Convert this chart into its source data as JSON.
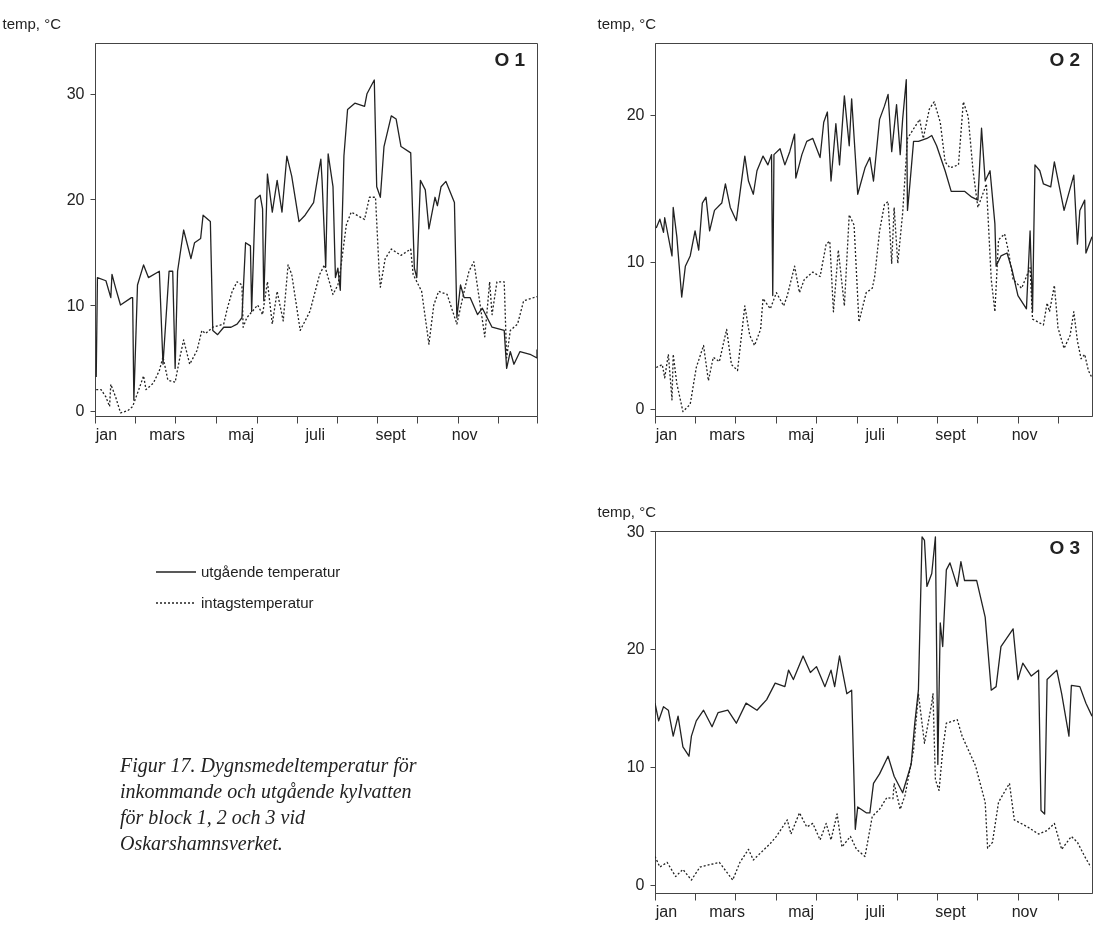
{
  "chart_data": [
    {
      "type": "line",
      "title": "O 1",
      "ylabel": "temp, °C",
      "legend": "bottom",
      "annotations": [
        "Figur 17. Dygnsmedeltemperatur för inkommande och utgående kylvatten för block 1, 2 och 3 vid Oskarshamnsverket."
      ],
      "xlim": [
        "--01-01",
        "--12-31"
      ],
      "ylim": [
        -0.5,
        34.8
      ],
      "yticks": [
        0,
        10,
        20,
        30
      ],
      "xticks": [
        {
          "value": "--01-01",
          "label": null
        },
        {
          "value": "--02-03",
          "label": null
        },
        {
          "value": "--03-08",
          "label": null
        },
        {
          "value": "--04-11",
          "label": null
        },
        {
          "value": "--05-14",
          "label": null
        },
        {
          "value": "--06-16",
          "label": null
        },
        {
          "value": "--07-19",
          "label": null
        },
        {
          "value": "--08-21",
          "label": null
        },
        {
          "value": "--09-23",
          "label": null
        },
        {
          "value": "--10-27",
          "label": null
        },
        {
          "value": "--11-29",
          "label": null
        },
        {
          "value": "--12-31",
          "label": null
        },
        {
          "value": "--01-10",
          "label": "jan"
        },
        {
          "value": "--03-01",
          "label": "mars"
        },
        {
          "value": "--05-01",
          "label": "maj"
        },
        {
          "value": "--07-01",
          "label": "juli"
        },
        {
          "value": "--09-01",
          "label": "sept"
        },
        {
          "value": "--11-01",
          "label": "nov"
        }
      ],
      "series": [
        {
          "name": "utgående temperatur",
          "color": "#222222",
          "line_style": "solid",
          "x": [
            "--01-02",
            "--01-03",
            "--01-10",
            "--01-14",
            "--01-15",
            "--01-18",
            "--01-22",
            "--01-31",
            "--02-01",
            "--02-02",
            "--02-05",
            "--02-10",
            "--02-14",
            "--02-23",
            "--02-26",
            "--03-03",
            "--03-06",
            "--03-08",
            "--03-10",
            "--03-15",
            "--03-21",
            "--03-24",
            "--03-29",
            "--03-31",
            "--04-06",
            "--04-08",
            "--04-12",
            "--04-17",
            "--04-23",
            "--04-28",
            "--05-02",
            "--05-05",
            "--05-09",
            "--05-10",
            "--05-13",
            "--05-17",
            "--05-19",
            "--05-20",
            "--05-23",
            "--05-27",
            "--05-31",
            "--06-04",
            "--06-08",
            "--06-12",
            "--06-18",
            "--06-23",
            "--06-30",
            "--07-04",
            "--07-06",
            "--07-07",
            "--07-10",
            "--07-12",
            "--07-16",
            "--07-18",
            "--07-20",
            "--07-22",
            "--07-25",
            "--07-28",
            "--08-03",
            "--08-11",
            "--08-13",
            "--08-19",
            "--08-21",
            "--08-24",
            "--08-27",
            "--09-02",
            "--09-06",
            "--09-10",
            "--09-18",
            "--09-21",
            "--09-23",
            "--09-26",
            "--09-30",
            "--10-03",
            "--10-08",
            "--10-10",
            "--10-13",
            "--10-17",
            "--10-24",
            "--10-26",
            "--10-29",
            "--11-01",
            "--11-06",
            "--11-12",
            "--11-16",
            "--11-24",
            "--12-04",
            "--12-06",
            "--12-09",
            "--12-12",
            "--12-17",
            "--12-26",
            "--12-31",
            "--12-31"
          ],
          "values": [
            3.2,
            12.6,
            12.3,
            10.7,
            12.9,
            11.6,
            10.0,
            10.7,
            10.7,
            1.0,
            11.9,
            13.8,
            12.6,
            13.2,
            4.4,
            13.2,
            13.2,
            4.0,
            13.2,
            17.1,
            14.4,
            15.9,
            16.3,
            18.5,
            17.9,
            7.6,
            7.2,
            7.9,
            7.9,
            8.2,
            8.8,
            15.9,
            15.6,
            9.4,
            20.0,
            20.4,
            19.1,
            10.4,
            22.4,
            18.8,
            21.8,
            18.8,
            24.1,
            22.2,
            17.9,
            18.5,
            19.7,
            22.5,
            23.8,
            21.8,
            13.6,
            24.3,
            21.2,
            12.6,
            13.5,
            11.4,
            24.1,
            28.5,
            29.1,
            28.8,
            30.0,
            31.3,
            21.2,
            20.2,
            25.0,
            27.9,
            27.6,
            25.0,
            24.4,
            13.5,
            12.6,
            21.8,
            20.9,
            17.2,
            20.2,
            19.4,
            21.2,
            21.7,
            19.7,
            8.8,
            11.9,
            10.7,
            10.7,
            9.1,
            9.7,
            7.9,
            7.6,
            4.0,
            5.6,
            4.4,
            5.6,
            5.3,
            5.0,
            5.8
          ]
        },
        {
          "name": "intagstemperatur",
          "color": "#222222",
          "line_style": "dotted",
          "x": [
            "--01-02",
            "--01-06",
            "--01-10",
            "--01-13",
            "--01-14",
            "--01-18",
            "--01-22",
            "--01-28",
            "--02-01",
            "--02-07",
            "--02-10",
            "--02-12",
            "--02-18",
            "--02-23",
            "--02-26",
            "--03-02",
            "--03-08",
            "--03-12",
            "--03-15",
            "--03-20",
            "--03-26",
            "--03-30",
            "--04-02",
            "--04-08",
            "--04-17",
            "--04-20",
            "--04-24",
            "--04-28",
            "--05-02",
            "--05-03",
            "--05-06",
            "--05-15",
            "--05-19",
            "--05-23",
            "--05-27",
            "--05-31",
            "--06-05",
            "--06-09",
            "--06-12",
            "--06-19",
            "--06-27",
            "--07-05",
            "--07-09",
            "--07-16",
            "--07-20",
            "--07-22",
            "--07-27",
            "--07-31",
            "--08-11",
            "--08-15",
            "--08-20",
            "--08-23",
            "--08-24",
            "--08-28",
            "--09-02",
            "--09-10",
            "--09-18",
            "--09-20",
            "--09-27",
            "--10-03",
            "--10-07",
            "--10-11",
            "--10-18",
            "--10-26",
            "--11-01",
            "--11-05",
            "--11-09",
            "--11-18",
            "--11-22",
            "--11-24",
            "--11-28",
            "--12-04",
            "--12-06",
            "--12-09",
            "--12-15",
            "--12-20",
            "--12-31"
          ],
          "values": [
            2.0,
            2.0,
            1.3,
            0.4,
            2.5,
            1.3,
            -0.2,
            0.0,
            0.4,
            2.3,
            3.3,
            2.0,
            2.6,
            3.8,
            5.1,
            2.9,
            2.7,
            5.1,
            6.7,
            4.4,
            5.7,
            7.6,
            7.3,
            7.9,
            8.2,
            9.7,
            11.3,
            12.2,
            11.9,
            7.9,
            8.8,
            10.0,
            9.1,
            12.2,
            8.2,
            11.3,
            8.5,
            13.8,
            12.9,
            7.6,
            9.4,
            12.9,
            13.8,
            11.0,
            11.9,
            13.2,
            17.6,
            18.8,
            18.1,
            20.2,
            20.2,
            13.2,
            11.7,
            14.4,
            15.3,
            14.7,
            15.3,
            12.9,
            11.3,
            6.3,
            10.0,
            11.3,
            11.0,
            8.2,
            11.3,
            13.2,
            14.1,
            7.0,
            12.2,
            9.1,
            12.2,
            12.2,
            5.0,
            7.6,
            8.2,
            10.4,
            10.8
          ]
        }
      ]
    },
    {
      "type": "line",
      "title": "O 2",
      "ylabel": "temp, °C",
      "xlim": [
        "--01-01",
        "--12-27"
      ],
      "ylim": [
        -0.5,
        24.9
      ],
      "yticks": [
        0,
        10,
        20
      ],
      "xticks": [
        {
          "value": "--01-01",
          "label": null
        },
        {
          "value": "--02-03",
          "label": null
        },
        {
          "value": "--03-08",
          "label": null
        },
        {
          "value": "--04-11",
          "label": null
        },
        {
          "value": "--05-14",
          "label": null
        },
        {
          "value": "--06-16",
          "label": null
        },
        {
          "value": "--07-19",
          "label": null
        },
        {
          "value": "--08-21",
          "label": null
        },
        {
          "value": "--09-23",
          "label": null
        },
        {
          "value": "--10-27",
          "label": null
        },
        {
          "value": "--11-29",
          "label": null
        },
        {
          "value": "--01-10",
          "label": "jan"
        },
        {
          "value": "--03-01",
          "label": "mars"
        },
        {
          "value": "--05-01",
          "label": "maj"
        },
        {
          "value": "--07-01",
          "label": "juli"
        },
        {
          "value": "--09-01",
          "label": "sept"
        },
        {
          "value": "--11-01",
          "label": "nov"
        }
      ],
      "series": [
        {
          "color": "#222222",
          "line_style": "solid",
          "x": [
            "--01-02",
            "--01-05",
            "--01-08",
            "--01-09",
            "--01-15",
            "--01-16",
            "--01-19",
            "--01-23",
            "--01-26",
            "--01-30",
            "--02-03",
            "--02-06",
            "--02-09",
            "--02-12",
            "--02-15",
            "--02-19",
            "--02-25",
            "--02-28",
            "--03-04",
            "--03-09",
            "--03-16",
            "--03-19",
            "--03-23",
            "--03-26",
            "--03-31",
            "--04-04",
            "--04-07",
            "--04-08",
            "--04-09",
            "--04-14",
            "--04-18",
            "--04-22",
            "--04-26",
            "--04-27",
            "--05-02",
            "--05-06",
            "--05-11",
            "--05-17",
            "--05-20",
            "--05-23",
            "--05-26",
            "--05-30",
            "--06-02",
            "--06-06",
            "--06-10",
            "--06-12",
            "--06-17",
            "--06-23",
            "--06-27",
            "--06-30",
            "--07-05",
            "--07-09",
            "--07-12",
            "--07-15",
            "--07-19",
            "--07-22",
            "--07-24",
            "--07-27",
            "--07-28",
            "--07-30",
            "--08-02",
            "--08-06",
            "--08-13",
            "--08-17",
            "--08-21",
            "--08-28",
            "--09-02",
            "--09-13",
            "--09-19",
            "--09-24",
            "--09-27",
            "--09-30",
            "--10-04",
            "--10-08",
            "--10-09",
            "--10-13",
            "--10-18",
            "--10-22",
            "--10-27",
            "--11-03",
            "--11-06",
            "--11-08",
            "--11-10",
            "--11-14",
            "--11-17",
            "--11-23",
            "--11-26",
            "--12-04",
            "--12-12",
            "--12-15",
            "--12-17",
            "--12-21",
            "--12-22",
            "--12-27"
          ],
          "values": [
            12.3,
            12.9,
            12.0,
            13.0,
            10.4,
            13.7,
            11.7,
            7.6,
            9.7,
            10.4,
            12.1,
            10.8,
            14.0,
            14.4,
            12.1,
            13.5,
            14.0,
            15.3,
            13.7,
            12.8,
            17.2,
            15.5,
            14.6,
            16.2,
            17.2,
            16.6,
            17.3,
            7.7,
            17.3,
            17.7,
            16.6,
            17.5,
            18.7,
            15.7,
            17.3,
            18.2,
            18.4,
            17.1,
            19.5,
            20.2,
            15.5,
            19.4,
            16.6,
            21.3,
            17.9,
            21.1,
            14.6,
            16.4,
            17.1,
            15.5,
            19.7,
            20.6,
            21.4,
            17.5,
            20.7,
            17.3,
            19.7,
            22.4,
            13.5,
            15.3,
            18.2,
            18.2,
            18.4,
            18.6,
            17.9,
            16.2,
            14.8,
            14.8,
            14.4,
            14.2,
            19.1,
            15.5,
            16.2,
            12.6,
            9.7,
            10.4,
            10.6,
            9.5,
            7.7,
            6.8,
            12.1,
            6.6,
            16.6,
            16.2,
            15.3,
            15.1,
            16.8,
            13.5,
            15.9,
            11.2,
            13.5,
            14.2,
            10.6,
            11.7
          ]
        },
        {
          "color": "#222222",
          "line_style": "dotted",
          "x": [
            "--01-02",
            "--01-07",
            "--01-09",
            "--01-12",
            "--01-15",
            "--01-16",
            "--01-19",
            "--01-24",
            "--01-30",
            "--02-04",
            "--02-10",
            "--02-14",
            "--02-18",
            "--02-23",
            "--03-01",
            "--03-05",
            "--03-10",
            "--03-16",
            "--03-20",
            "--03-24",
            "--03-29",
            "--03-31",
            "--04-06",
            "--04-11",
            "--04-17",
            "--04-20",
            "--04-26",
            "--04-30",
            "--05-04",
            "--05-11",
            "--05-17",
            "--05-22",
            "--05-25",
            "--05-28",
            "--06-01",
            "--06-06",
            "--06-10",
            "--06-14",
            "--06-18",
            "--06-24",
            "--06-29",
            "--07-01",
            "--07-05",
            "--07-09",
            "--07-12",
            "--07-15",
            "--07-17",
            "--07-20",
            "--07-24",
            "--07-28",
            "--08-07",
            "--08-10",
            "--08-15",
            "--08-19",
            "--08-24",
            "--08-28",
            "--09-01",
            "--09-08",
            "--09-12",
            "--09-16",
            "--09-20",
            "--09-24",
            "--10-01",
            "--10-05",
            "--10-08",
            "--10-11",
            "--10-16",
            "--10-19",
            "--10-23",
            "--10-30",
            "--11-06",
            "--11-08",
            "--11-17",
            "--11-20",
            "--11-22",
            "--11-26",
            "--11-29",
            "--12-04",
            "--12-09",
            "--12-12",
            "--12-15",
            "--12-18",
            "--12-21",
            "--12-24",
            "--12-27"
          ],
          "values": [
            2.8,
            3.0,
            2.1,
            3.7,
            0.6,
            3.7,
            1.7,
            -0.2,
            0.3,
            2.8,
            4.3,
            1.9,
            3.5,
            3.2,
            5.4,
            3.0,
            2.6,
            7.0,
            5.0,
            4.3,
            5.4,
            7.5,
            6.8,
            7.9,
            7.0,
            7.7,
            9.7,
            7.9,
            8.8,
            9.3,
            9.0,
            11.2,
            11.4,
            6.6,
            10.8,
            7.0,
            13.2,
            12.5,
            5.9,
            7.9,
            8.2,
            9.0,
            12.1,
            13.9,
            14.1,
            9.9,
            13.7,
            9.9,
            13.3,
            18.4,
            19.7,
            18.4,
            20.4,
            20.9,
            19.5,
            16.8,
            16.4,
            16.6,
            20.9,
            19.9,
            16.2,
            13.7,
            15.3,
            8.8,
            6.6,
            11.5,
            11.9,
            10.8,
            8.8,
            8.2,
            9.6,
            6.1,
            5.7,
            7.2,
            6.6,
            8.4,
            5.5,
            4.1,
            5.0,
            6.6,
            4.6,
            3.4,
            3.7,
            2.6,
            2.1
          ]
        }
      ]
    },
    {
      "type": "line",
      "title": "O 3",
      "ylabel": "temp, °C",
      "xlim": [
        "--01-01",
        "--12-27"
      ],
      "ylim": [
        -0.7,
        30
      ],
      "yticks": [
        0,
        10,
        20,
        30
      ],
      "xticks": [
        {
          "value": "--01-01",
          "label": null
        },
        {
          "value": "--02-03",
          "label": null
        },
        {
          "value": "--03-08",
          "label": null
        },
        {
          "value": "--04-11",
          "label": null
        },
        {
          "value": "--05-14",
          "label": null
        },
        {
          "value": "--06-16",
          "label": null
        },
        {
          "value": "--07-19",
          "label": null
        },
        {
          "value": "--08-21",
          "label": null
        },
        {
          "value": "--09-23",
          "label": null
        },
        {
          "value": "--10-27",
          "label": null
        },
        {
          "value": "--11-29",
          "label": null
        },
        {
          "value": "--01-10",
          "label": "jan"
        },
        {
          "value": "--03-01",
          "label": "mars"
        },
        {
          "value": "--05-01",
          "label": "maj"
        },
        {
          "value": "--07-01",
          "label": "juli"
        },
        {
          "value": "--09-01",
          "label": "sept"
        },
        {
          "value": "--11-01",
          "label": "nov"
        }
      ],
      "series": [
        {
          "color": "#222222",
          "line_style": "solid",
          "x": [
            "--01-01",
            "--01-04",
            "--01-08",
            "--01-12",
            "--01-16",
            "--01-20",
            "--01-24",
            "--01-29",
            "--01-31",
            "--02-04",
            "--02-10",
            "--02-17",
            "--02-22",
            "--03-02",
            "--03-09",
            "--03-17",
            "--03-26",
            "--04-03",
            "--04-10",
            "--04-18",
            "--04-21",
            "--04-25",
            "--05-03",
            "--05-09",
            "--05-14",
            "--05-21",
            "--05-26",
            "--05-29",
            "--06-02",
            "--06-08",
            "--06-12",
            "--06-15",
            "--06-17",
            "--06-24",
            "--06-27",
            "--06-30",
            "--07-05",
            "--07-12",
            "--07-17",
            "--07-24",
            "--07-31",
            "--08-03",
            "--08-06",
            "--08-09",
            "--08-11",
            "--08-13",
            "--08-17",
            "--08-20",
            "--08-22",
            "--08-24",
            "--08-26",
            "--08-29",
            "--09-01",
            "--09-07",
            "--09-10",
            "--09-13",
            "--09-23",
            "--09-30",
            "--10-05",
            "--10-09",
            "--10-13",
            "--10-23",
            "--10-27",
            "--10-31",
            "--11-07",
            "--11-13",
            "--11-15",
            "--11-18",
            "--11-20",
            "--11-28",
            "--12-02",
            "--12-08",
            "--12-10",
            "--12-17",
            "--12-22",
            "--12-27"
          ],
          "values": [
            15.4,
            13.9,
            15.1,
            14.8,
            12.6,
            14.3,
            11.7,
            10.9,
            12.6,
            13.9,
            14.8,
            13.4,
            14.6,
            14.8,
            13.7,
            15.4,
            14.8,
            15.7,
            17.1,
            16.8,
            18.2,
            17.4,
            19.4,
            18.0,
            18.5,
            16.8,
            18.2,
            16.8,
            19.4,
            16.2,
            16.5,
            4.7,
            6.6,
            6.1,
            6.1,
            8.6,
            9.4,
            10.9,
            9.2,
            7.8,
            10.2,
            13.7,
            16.5,
            29.5,
            29.2,
            25.3,
            26.4,
            29.5,
            10.2,
            22.2,
            20.2,
            26.7,
            27.3,
            25.3,
            27.4,
            25.8,
            25.8,
            22.7,
            16.5,
            16.8,
            20.2,
            21.7,
            17.4,
            18.8,
            17.7,
            18.2,
            6.3,
            6.0,
            17.4,
            18.2,
            16.2,
            12.6,
            16.9,
            16.8,
            15.4,
            14.3
          ]
        },
        {
          "color": "#222222",
          "line_style": "dotted",
          "x": [
            "--01-01",
            "--01-05",
            "--01-11",
            "--01-18",
            "--01-24",
            "--01-31",
            "--02-07",
            "--02-23",
            "--03-06",
            "--03-12",
            "--03-19",
            "--03-23",
            "--03-29",
            "--04-06",
            "--04-11",
            "--04-20",
            "--04-23",
            "--04-30",
            "--05-06",
            "--05-11",
            "--05-17",
            "--05-22",
            "--05-26",
            "--05-31",
            "--06-04",
            "--06-11",
            "--06-16",
            "--06-23",
            "--06-29",
            "--07-05",
            "--07-11",
            "--07-16",
            "--07-17",
            "--07-22",
            "--07-26",
            "--08-02",
            "--08-06",
            "--08-11",
            "--08-14",
            "--08-17",
            "--08-18",
            "--08-20",
            "--08-23",
            "--08-26",
            "--08-29",
            "--09-07",
            "--09-11",
            "--09-22",
            "--09-30",
            "--10-02",
            "--10-06",
            "--10-11",
            "--10-20",
            "--10-24",
            "--11-04",
            "--11-13",
            "--11-20",
            "--11-26",
            "--12-02",
            "--12-10",
            "--12-15",
            "--12-21",
            "--12-26"
          ],
          "values": [
            2.4,
            1.5,
            1.9,
            0.7,
            1.3,
            0.4,
            1.5,
            1.9,
            0.4,
            1.9,
            3.0,
            2.1,
            2.7,
            3.5,
            4.1,
            5.5,
            4.3,
            6.1,
            4.9,
            5.2,
            3.8,
            5.2,
            3.8,
            6.0,
            3.2,
            4.1,
            3.0,
            2.4,
            5.8,
            6.4,
            7.4,
            7.3,
            8.6,
            6.4,
            7.6,
            11.4,
            16.2,
            12.0,
            13.7,
            15.4,
            16.2,
            8.9,
            8.0,
            11.4,
            13.7,
            14.0,
            12.6,
            10.1,
            7.0,
            3.1,
            3.6,
            7.0,
            8.6,
            5.5,
            4.9,
            4.3,
            4.6,
            5.2,
            3.0,
            4.1,
            3.6,
            2.4,
            1.5
          ]
        }
      ]
    }
  ]
}
